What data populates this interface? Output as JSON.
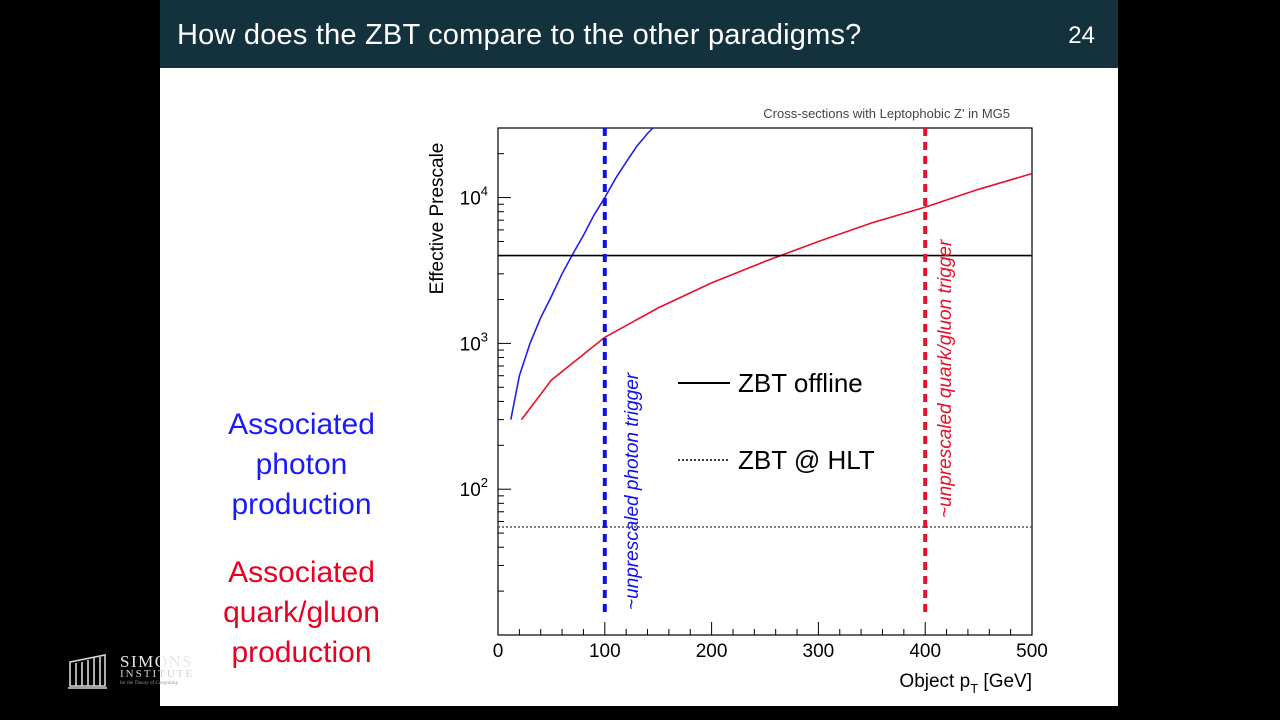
{
  "slide": {
    "title": "How does the ZBT compare to the other paradigms?",
    "number": "24",
    "label_photon": [
      "Associated",
      "photon",
      "production"
    ],
    "label_quark": [
      "Associated",
      "quark/gluon",
      "production"
    ]
  },
  "logo": {
    "name": "SIMONS",
    "sub": "INSTITUTE",
    "tagline": "for the Theory of Computing"
  },
  "chart_data": {
    "type": "line",
    "title": "Cross-sections with Leptophobic Z' in MG5",
    "xlabel": "Object p",
    "xlabel_sub": "T",
    "xlabel_unit": "[GeV]",
    "ylabel": "Effective Prescale",
    "xlim": [
      0,
      500
    ],
    "ylim": [
      10,
      30000
    ],
    "yscale": "log",
    "xticks": [
      0,
      100,
      200,
      300,
      400,
      500
    ],
    "yticks": [
      {
        "base": "10",
        "exp": "2",
        "value": 100
      },
      {
        "base": "10",
        "exp": "3",
        "value": 1000
      },
      {
        "base": "10",
        "exp": "4",
        "value": 10000
      }
    ],
    "series": [
      {
        "name": "Associated photon production",
        "color": "#2020ee",
        "x": [
          12,
          20,
          30,
          40,
          50,
          60,
          70,
          80,
          90,
          100,
          110,
          120,
          130,
          140,
          145
        ],
        "y": [
          300,
          600,
          1000,
          1500,
          2100,
          3000,
          4100,
          5500,
          7600,
          10000,
          13500,
          17500,
          22500,
          27500,
          30000
        ]
      },
      {
        "name": "Associated quark/gluon production",
        "color": "#e8102a",
        "x": [
          22,
          50,
          100,
          150,
          200,
          250,
          300,
          350,
          400,
          450,
          500
        ],
        "y": [
          300,
          560,
          1100,
          1750,
          2600,
          3650,
          5000,
          6700,
          8600,
          11400,
          14600
        ]
      },
      {
        "name": "ZBT offline",
        "color": "#000000",
        "style": "solid",
        "x": [
          0,
          500
        ],
        "y": [
          4000,
          4000
        ]
      },
      {
        "name": "ZBT @ HLT",
        "color": "#555555",
        "style": "dotted",
        "x": [
          0,
          500
        ],
        "y": [
          55,
          55
        ]
      }
    ],
    "vlines": [
      {
        "x": 100,
        "label": "~unprescaled photon trigger",
        "color": "#1010ee"
      },
      {
        "x": 400,
        "label": "~unprescaled quark/gluon trigger",
        "color": "#e8102a"
      }
    ],
    "legend": {
      "placement": "center",
      "entries": [
        {
          "label": "ZBT offline",
          "style": "solid"
        },
        {
          "label": "ZBT @ HLT",
          "style": "dotted"
        }
      ]
    }
  }
}
